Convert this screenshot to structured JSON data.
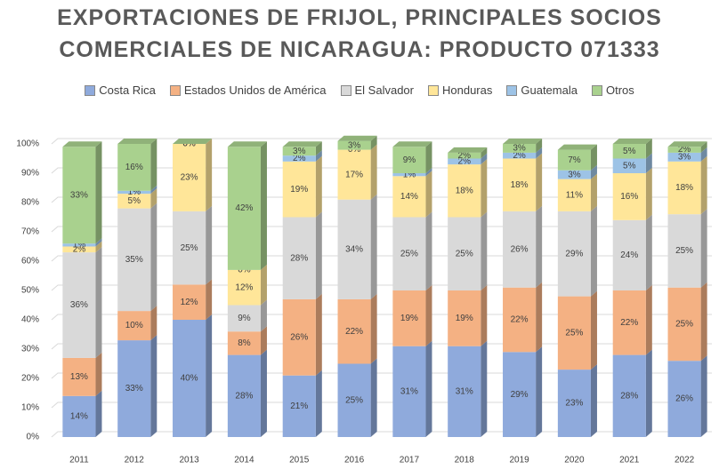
{
  "chart_data": {
    "type": "stacked_bar",
    "title": [
      "EXPORTACIONES DE FRIJOL, PRINCIPALES SOCIOS",
      "COMERCIALES DE NICARAGUA: PRODUCTO 071333"
    ],
    "categories": [
      "2011",
      "2012",
      "2013",
      "2014",
      "2015",
      "2016",
      "2017",
      "2018",
      "2019",
      "2020",
      "2021",
      "2022"
    ],
    "series": [
      {
        "name": "Costa Rica",
        "color": "#8faadc",
        "values": [
          14,
          33,
          40,
          28,
          21,
          25,
          31,
          31,
          29,
          23,
          28,
          26
        ],
        "value_labels": [
          "14%",
          "33%",
          "40%",
          "28%",
          "21%",
          "25%",
          "31%",
          "31%",
          "29%",
          "23%",
          "28%",
          "26%"
        ]
      },
      {
        "name": "Estados Unidos de América",
        "color": "#f4b183",
        "values": [
          13,
          10,
          12,
          8,
          26,
          22,
          19,
          19,
          22,
          25,
          22,
          25
        ],
        "value_labels": [
          "13%",
          "10%",
          "12%",
          "8%",
          "26%",
          "22%",
          "19%",
          "19%",
          "22%",
          "25%",
          "22%",
          "25%"
        ]
      },
      {
        "name": "El Salvador",
        "color": "#d9d9d9",
        "values": [
          36,
          35,
          25,
          9,
          28,
          34,
          25,
          25,
          26,
          29,
          24,
          25
        ],
        "value_labels": [
          "36%",
          "35%",
          "25%",
          "9%",
          "28%",
          "34%",
          "25%",
          "25%",
          "26%",
          "29%",
          "24%",
          "25%"
        ]
      },
      {
        "name": "Honduras",
        "color": "#ffe699",
        "values": [
          2,
          5,
          23,
          12,
          19,
          17,
          14,
          18,
          18,
          11,
          16,
          18
        ],
        "value_labels": [
          "2%",
          "5%",
          "23%",
          "12%",
          "19%",
          "17%",
          "14%",
          "18%",
          "18%",
          "11%",
          "16%",
          "18%"
        ]
      },
      {
        "name": "Guatemala",
        "color": "#9dc3e6",
        "values": [
          1,
          1,
          0,
          0,
          2,
          0,
          1,
          2,
          2,
          3,
          5,
          3
        ],
        "value_labels": [
          "1%",
          "1%",
          "0%",
          "0%",
          "2%",
          "0%",
          "1%",
          "2%",
          "2%",
          "3%",
          "5%",
          "3%"
        ]
      },
      {
        "name": "Otros",
        "color": "#a9d18e",
        "values": [
          33,
          16,
          0,
          42,
          3,
          3,
          9,
          2,
          3,
          7,
          5,
          2
        ],
        "value_labels": [
          "33%",
          "16%",
          "0%",
          "42%",
          "3%",
          "3%",
          "9%",
          "2%",
          "3%",
          "7%",
          "5%",
          "2%"
        ]
      }
    ],
    "ylim": [
      0,
      100
    ],
    "yticks": [
      {
        "value": 0,
        "label": "0%"
      },
      {
        "value": 10,
        "label": "10%"
      },
      {
        "value": 20,
        "label": "20%"
      },
      {
        "value": 30,
        "label": "30%"
      },
      {
        "value": 40,
        "label": "40%"
      },
      {
        "value": 50,
        "label": "50%"
      },
      {
        "value": 60,
        "label": "60%"
      },
      {
        "value": 70,
        "label": "70%"
      },
      {
        "value": 80,
        "label": "80%"
      },
      {
        "value": 90,
        "label": "90%"
      },
      {
        "value": 100,
        "label": "100%"
      }
    ],
    "grid": true,
    "legend": "top"
  }
}
